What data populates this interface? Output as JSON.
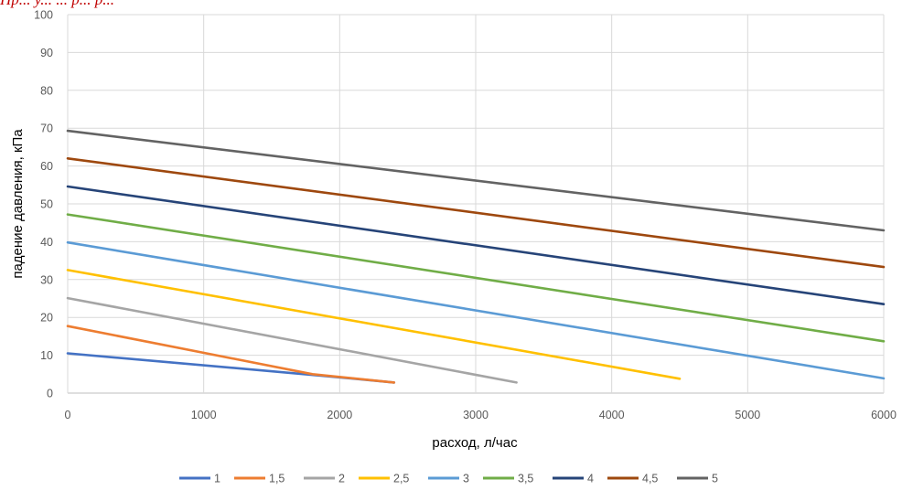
{
  "caption": "Пр... у... ... р... р...",
  "chart_data": {
    "type": "line",
    "title": "",
    "xlabel": "расход, л/час",
    "ylabel": "падение давления, кПа",
    "xlim": [
      0,
      6000
    ],
    "ylim": [
      0,
      100
    ],
    "x_ticks": [
      "0",
      "1000",
      "2000",
      "3000",
      "4000",
      "5000",
      "6000"
    ],
    "y_ticks": [
      "0",
      "10",
      "20",
      "30",
      "40",
      "50",
      "60",
      "70",
      "80",
      "90",
      "100"
    ],
    "grid": true,
    "legend_position": "bottom",
    "series": [
      {
        "name": "1",
        "color": "#4472C4",
        "points": [
          [
            0,
            10.5
          ],
          [
            1900,
            4.5
          ],
          [
            2400,
            2.8
          ]
        ]
      },
      {
        "name": "1,5",
        "color": "#ED7D31",
        "points": [
          [
            0,
            17.7
          ],
          [
            1800,
            5.0
          ],
          [
            2400,
            2.8
          ]
        ]
      },
      {
        "name": "2",
        "color": "#A5A5A5",
        "points": [
          [
            0,
            25.1
          ],
          [
            3300,
            2.8
          ]
        ]
      },
      {
        "name": "2,5",
        "color": "#FFC000",
        "points": [
          [
            0,
            32.5
          ],
          [
            4500,
            3.8
          ]
        ]
      },
      {
        "name": "3",
        "color": "#5B9BD5",
        "points": [
          [
            0,
            39.8
          ],
          [
            6000,
            3.9
          ]
        ]
      },
      {
        "name": "3,5",
        "color": "#70AD47",
        "points": [
          [
            0,
            47.2
          ],
          [
            6000,
            13.7
          ]
        ]
      },
      {
        "name": "4",
        "color": "#264478",
        "points": [
          [
            0,
            54.6
          ],
          [
            6000,
            23.5
          ]
        ]
      },
      {
        "name": "4,5",
        "color": "#9E480E",
        "points": [
          [
            0,
            62.0
          ],
          [
            6000,
            33.3
          ]
        ]
      },
      {
        "name": "5",
        "color": "#636363",
        "points": [
          [
            0,
            69.3
          ],
          [
            6000,
            43.0
          ]
        ]
      }
    ]
  }
}
